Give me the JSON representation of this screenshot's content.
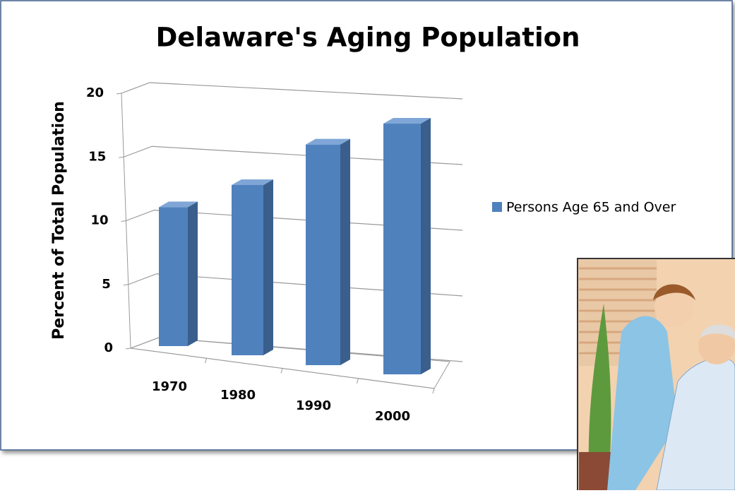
{
  "chart_data": {
    "type": "bar3d",
    "title": "Delaware's Aging Population",
    "y_label": "Percent of Total Population",
    "categories": [
      "1970",
      "1980",
      "1990",
      "2000"
    ],
    "series": [
      {
        "name": "Persons Age 65 and Over",
        "color": "#4f81bd",
        "values": [
          11.3,
          13.1,
          16.1,
          17.4
        ]
      }
    ],
    "ylim": [
      0,
      20
    ],
    "yticks": [
      0,
      5,
      10,
      15,
      20
    ],
    "grid": true,
    "legend": "right"
  }
}
